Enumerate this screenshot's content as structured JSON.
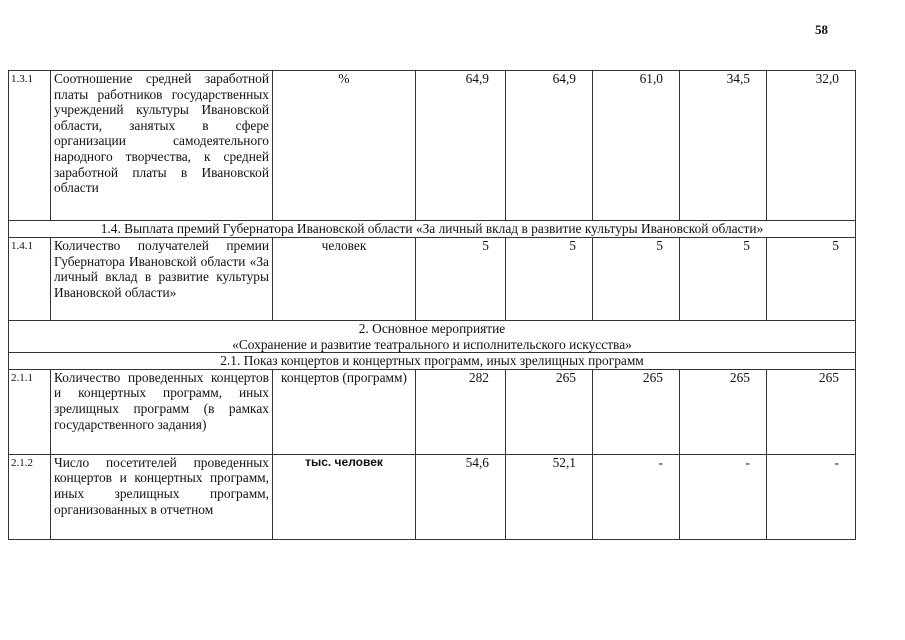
{
  "page_number": "58",
  "rows": [
    {
      "type": "item",
      "num": "1.3.1",
      "desc": "Соотношение средней заработной платы работников государственных учреждений культуры Ивановской области, занятых в сфере организации самодеятельного народного творчества, к средней заработной платы в Ивановской области",
      "unit": "%",
      "values": [
        "64,9",
        "64,9",
        "61,0",
        "34,5",
        "32,0"
      ]
    },
    {
      "type": "header",
      "text": "1.4. Выплата премий Губернатора Ивановской области «За личный вклад в развитие культуры Ивановской области»"
    },
    {
      "type": "item",
      "num": "1.4.1",
      "desc": "Количество получателей премии Губернатора Ивановской области «За личный вклад в развитие культуры Ивановской области»",
      "unit": "человек",
      "values": [
        "5",
        "5",
        "5",
        "5",
        "5"
      ]
    },
    {
      "type": "header2",
      "line1": "2. Основное мероприятие",
      "line2": "«Сохранение и развитие театрального и исполнительского искусства»"
    },
    {
      "type": "header",
      "text": "2.1. Показ концертов и концертных программ, иных зрелищных программ"
    },
    {
      "type": "item",
      "num": "2.1.1",
      "desc": "Количество проведенных концертов и концертных программ, иных зрелищных программ (в рамках государственного задания)",
      "unit": "концертов (программ)",
      "values": [
        "282",
        "265",
        "265",
        "265",
        "265"
      ]
    },
    {
      "type": "item",
      "num": "2.1.2",
      "desc": "Число посетителей проведенных концертов и концертных программ, иных зрелищных программ, организованных в отчетном",
      "unit": "тыс. человек",
      "unit_bold": true,
      "values": [
        "54,6",
        "52,1",
        "-",
        "-",
        "-"
      ]
    }
  ]
}
